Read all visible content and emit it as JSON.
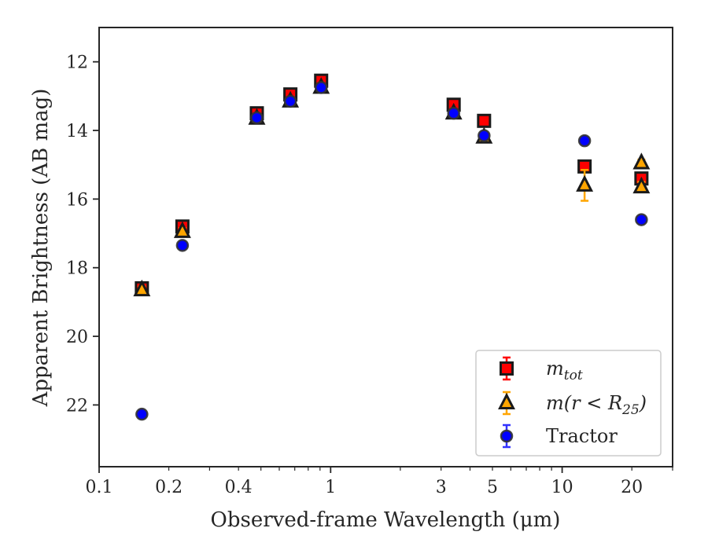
{
  "chart_data": {
    "type": "scatter",
    "title": "",
    "xlabel": "Observed-frame Wavelength (μm)",
    "ylabel": "Apparent Brightness (AB mag)",
    "xscale": "log",
    "xlim": [
      0.1,
      30
    ],
    "ylim": [
      23.8,
      11.0
    ],
    "y_inverted": true,
    "x_ticks": [
      {
        "value": 0.1,
        "label": "0.1"
      },
      {
        "value": 0.2,
        "label": "0.2"
      },
      {
        "value": 0.4,
        "label": "0.4"
      },
      {
        "value": 1,
        "label": "1"
      },
      {
        "value": 3,
        "label": "3"
      },
      {
        "value": 5,
        "label": "5"
      },
      {
        "value": 10,
        "label": "10"
      },
      {
        "value": 20,
        "label": "20"
      }
    ],
    "y_ticks": [
      {
        "value": 12,
        "label": "12"
      },
      {
        "value": 14,
        "label": "14"
      },
      {
        "value": 16,
        "label": "16"
      },
      {
        "value": 18,
        "label": "18"
      },
      {
        "value": 20,
        "label": "20"
      },
      {
        "value": 22,
        "label": "22"
      }
    ],
    "grid": false,
    "legend_position": "lower-right",
    "series": [
      {
        "name": "m_tot",
        "marker": "square",
        "color": "#ff0000",
        "edge_color": "#1a1a1a",
        "errorbar_color": "#ff0000",
        "points": [
          {
            "x": 0.153,
            "y": 18.6,
            "yerr": 0.1
          },
          {
            "x": 0.229,
            "y": 16.8,
            "yerr": 0.1
          },
          {
            "x": 0.48,
            "y": 13.5,
            "yerr": 0.1
          },
          {
            "x": 0.67,
            "y": 12.95,
            "yerr": 0.1
          },
          {
            "x": 0.91,
            "y": 12.55,
            "yerr": 0.1
          },
          {
            "x": 3.4,
            "y": 13.25,
            "yerr": 0.1
          },
          {
            "x": 4.6,
            "y": 13.72,
            "yerr": 0.06
          },
          {
            "x": 12.5,
            "y": 15.05,
            "yerr": 0.06
          },
          {
            "x": 22.0,
            "y": 15.4,
            "yerr": 0.06
          }
        ]
      },
      {
        "name": "m(r < R25)",
        "marker": "triangle",
        "color": "#ffa500",
        "edge_color": "#1a1a1a",
        "errorbar_color": "#ffa500",
        "points": [
          {
            "x": 0.153,
            "y": 18.65,
            "yerr": 0.1
          },
          {
            "x": 0.229,
            "y": 16.95,
            "yerr": 0.1
          },
          {
            "x": 0.48,
            "y": 13.65,
            "yerr": 0.05
          },
          {
            "x": 0.67,
            "y": 13.15,
            "yerr": 0.05
          },
          {
            "x": 0.91,
            "y": 12.75,
            "yerr": 0.05
          },
          {
            "x": 3.4,
            "y": 13.5,
            "yerr": 0.05
          },
          {
            "x": 4.6,
            "y": 14.2,
            "yerr": 0.05
          },
          {
            "x": 12.5,
            "y": 15.6,
            "yerr": 0.45
          },
          {
            "x": 22.0,
            "y": 14.95,
            "yerr": 0.1
          },
          {
            "x": 22.0,
            "y": 15.65,
            "yerr": 0.15
          }
        ]
      },
      {
        "name": "Tractor",
        "marker": "circle",
        "color": "#0000ff",
        "edge_color": "#333333",
        "errorbar_color": "#3333ff",
        "points": [
          {
            "x": 0.153,
            "y": 22.27,
            "yerr": 0.05
          },
          {
            "x": 0.229,
            "y": 17.35,
            "yerr": 0.05
          },
          {
            "x": 0.48,
            "y": 13.63,
            "yerr": 0.05
          },
          {
            "x": 0.67,
            "y": 13.15,
            "yerr": 0.05
          },
          {
            "x": 0.91,
            "y": 12.75,
            "yerr": 0.05
          },
          {
            "x": 3.4,
            "y": 13.5,
            "yerr": 0.05
          },
          {
            "x": 4.6,
            "y": 14.15,
            "yerr": 0.05
          },
          {
            "x": 12.5,
            "y": 14.3,
            "yerr": 0.05
          },
          {
            "x": 22.0,
            "y": 16.6,
            "yerr": 0.05
          }
        ]
      }
    ],
    "legend": [
      {
        "series": "m_tot",
        "label_main": "m",
        "label_sub": "tot",
        "label_rest": ""
      },
      {
        "series": "m(r < R25)",
        "label_main": "m(r < R",
        "label_sub": "25",
        "label_rest": ")"
      },
      {
        "series": "Tractor",
        "label_main": "Tractor",
        "label_sub": "",
        "label_rest": ""
      }
    ]
  }
}
